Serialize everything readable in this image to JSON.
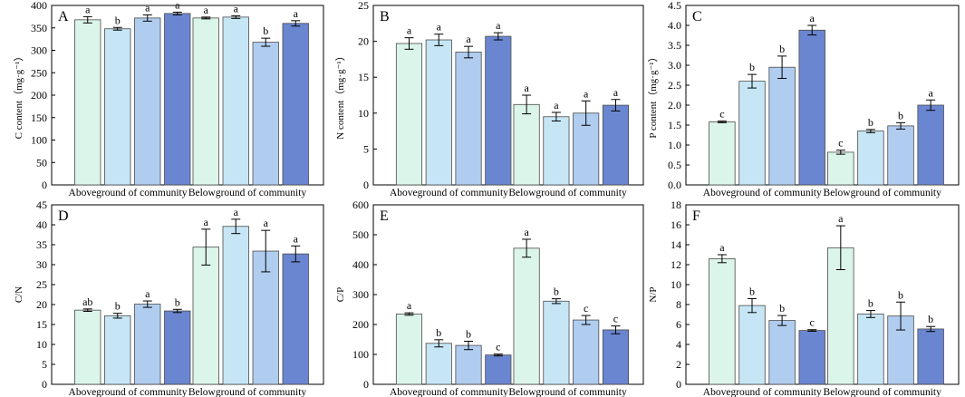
{
  "colors": {
    "series": [
      "#dcf5ea",
      "#c6e6f6",
      "#b0cdf0",
      "#6a86d0"
    ],
    "stroke": "#4a4a4a",
    "error_bar": "#000000"
  },
  "chart_data": [
    {
      "type": "bar",
      "panel_label": "A",
      "ylabel": "C content（mg·g⁻¹）",
      "ylim": [
        0,
        400
      ],
      "yticks": [
        0,
        50,
        100,
        150,
        200,
        250,
        300,
        350,
        400
      ],
      "groups": [
        "Aboveground of community",
        "Belowground of community"
      ],
      "values": [
        [
          368,
          348,
          372,
          382
        ],
        [
          372,
          374,
          318,
          360
        ]
      ],
      "errors": [
        [
          7,
          3,
          7,
          3
        ],
        [
          2,
          3,
          9,
          6
        ]
      ],
      "letters": [
        [
          "a",
          "b",
          "a",
          "a"
        ],
        [
          "a",
          "a",
          "b",
          "a"
        ]
      ]
    },
    {
      "type": "bar",
      "panel_label": "B",
      "ylabel": "N content（mg·g⁻¹）",
      "ylim": [
        0,
        25
      ],
      "yticks": [
        0,
        5,
        10,
        15,
        20,
        25
      ],
      "groups": [
        "Aboveground of community",
        "Belowground of community"
      ],
      "values": [
        [
          19.7,
          20.2,
          18.5,
          20.7
        ],
        [
          11.2,
          9.5,
          10.0,
          11.1
        ]
      ],
      "errors": [
        [
          0.8,
          0.8,
          0.8,
          0.5
        ],
        [
          1.3,
          0.6,
          1.7,
          0.8
        ]
      ],
      "letters": [
        [
          "a",
          "a",
          "a",
          "a"
        ],
        [
          "a",
          "a",
          "a",
          "a"
        ]
      ]
    },
    {
      "type": "bar",
      "panel_label": "C",
      "ylabel": "P content（mg·g⁻¹）",
      "ylim": [
        0,
        4.5
      ],
      "yticks": [
        0,
        0.5,
        1.0,
        1.5,
        2.0,
        2.5,
        3.0,
        3.5,
        4.0,
        4.5
      ],
      "groups": [
        "Aboveground of community",
        "Belowground of community"
      ],
      "values": [
        [
          1.58,
          2.6,
          2.95,
          3.88
        ],
        [
          0.82,
          1.35,
          1.48,
          2.0
        ]
      ],
      "errors": [
        [
          0.02,
          0.17,
          0.28,
          0.12
        ],
        [
          0.05,
          0.04,
          0.08,
          0.13
        ]
      ],
      "letters": [
        [
          "c",
          "b",
          "b",
          "a"
        ],
        [
          "c",
          "b",
          "b",
          "a"
        ]
      ]
    },
    {
      "type": "bar",
      "panel_label": "D",
      "ylabel": "C/N",
      "ylim": [
        0,
        45
      ],
      "yticks": [
        0,
        5,
        10,
        15,
        20,
        25,
        30,
        35,
        40,
        45
      ],
      "groups": [
        "Aboveground of community",
        "Belowground of community"
      ],
      "values": [
        [
          18.6,
          17.2,
          20.1,
          18.4
        ],
        [
          34.4,
          39.6,
          33.4,
          32.7
        ]
      ],
      "errors": [
        [
          0.3,
          0.6,
          0.8,
          0.4
        ],
        [
          4.5,
          1.8,
          5.2,
          2.0
        ]
      ],
      "letters": [
        [
          "ab",
          "b",
          "a",
          "b"
        ],
        [
          "a",
          "a",
          "a",
          "a"
        ]
      ]
    },
    {
      "type": "bar",
      "panel_label": "E",
      "ylabel": "C/P",
      "ylim": [
        0,
        600
      ],
      "yticks": [
        0,
        100,
        200,
        300,
        400,
        500,
        600
      ],
      "groups": [
        "Aboveground of community",
        "Belowground of community"
      ],
      "values": [
        [
          235,
          137,
          130,
          98
        ],
        [
          455,
          278,
          215,
          182
        ]
      ],
      "errors": [
        [
          4,
          12,
          14,
          3
        ],
        [
          30,
          8,
          15,
          13
        ]
      ],
      "letters": [
        [
          "a",
          "b",
          "b",
          "c"
        ],
        [
          "a",
          "b",
          "c",
          "c"
        ]
      ]
    },
    {
      "type": "bar",
      "panel_label": "F",
      "ylabel": "N/P",
      "ylim": [
        0,
        18
      ],
      "yticks": [
        0,
        2,
        4,
        6,
        8,
        10,
        12,
        14,
        16,
        18
      ],
      "groups": [
        "Aboveground of community",
        "Belowground of community"
      ],
      "values": [
        [
          12.6,
          7.9,
          6.4,
          5.4
        ],
        [
          13.7,
          7.05,
          6.85,
          5.55
        ]
      ],
      "errors": [
        [
          0.4,
          0.7,
          0.5,
          0.08
        ],
        [
          2.2,
          0.35,
          1.4,
          0.25
        ]
      ],
      "letters": [
        [
          "a",
          "b",
          "b",
          "c"
        ],
        [
          "a",
          "b",
          "b",
          "b"
        ]
      ]
    }
  ]
}
